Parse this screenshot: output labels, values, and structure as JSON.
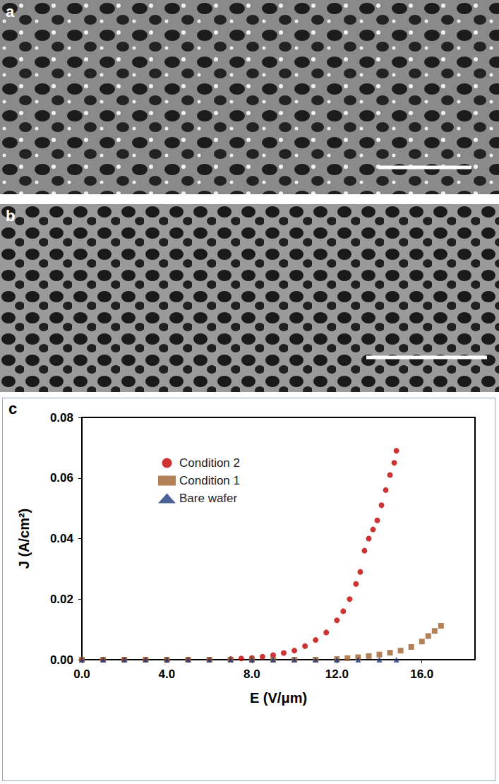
{
  "panel_labels": [
    "a",
    "b",
    "c"
  ],
  "chart_data": {
    "type": "scatter",
    "x_label": "E (V/μm)",
    "y_label": "J (A/cm²)",
    "xlim": [
      0,
      18.5
    ],
    "xticks": [
      {
        "value": 0,
        "label": "0.0"
      },
      {
        "value": 4,
        "label": "4.0"
      },
      {
        "value": 8,
        "label": "8.0"
      },
      {
        "value": 12,
        "label": "12.0"
      },
      {
        "value": 16,
        "label": "16.0"
      }
    ],
    "ylim": [
      0,
      0.08
    ],
    "yticks": [
      {
        "value": 0,
        "label": "0.00"
      },
      {
        "value": 0.02,
        "label": "0.02"
      },
      {
        "value": 0.04,
        "label": "0.04"
      },
      {
        "value": 0.06,
        "label": "0.06"
      },
      {
        "value": 0.08,
        "label": "0.08"
      }
    ],
    "grid": false,
    "legend": "upper left",
    "series": [
      {
        "name": "Condition 2",
        "color": "#c00000",
        "marker": "circle",
        "x": [
          0,
          1,
          2,
          3,
          4,
          5,
          6,
          7,
          7.5,
          8,
          8.5,
          9,
          9.5,
          10,
          10.5,
          11,
          11.5,
          12,
          12.3,
          12.6,
          12.9,
          13.1,
          13.3,
          13.5,
          13.7,
          13.9,
          14.1,
          14.3,
          14.5,
          14.7,
          14.8
        ],
        "values": [
          0,
          0,
          0,
          0,
          0,
          0,
          0,
          0.0002,
          0.0004,
          0.0006,
          0.001,
          0.0015,
          0.0022,
          0.003,
          0.0045,
          0.0065,
          0.009,
          0.013,
          0.016,
          0.02,
          0.025,
          0.029,
          0.036,
          0.04,
          0.043,
          0.046,
          0.051,
          0.056,
          0.061,
          0.065,
          0.069
        ]
      },
      {
        "name": "Condition 1",
        "color": "#a0622d",
        "marker": "square",
        "x": [
          0,
          1,
          2,
          3,
          4,
          5,
          6,
          7,
          8,
          9,
          10,
          11,
          12,
          12.5,
          13,
          13.5,
          14,
          14.5,
          15,
          15.5,
          16,
          16.3,
          16.6,
          16.9
        ],
        "values": [
          0,
          0,
          0,
          0,
          0,
          0,
          0,
          0,
          0,
          0,
          0,
          0,
          0.0002,
          0.0005,
          0.0008,
          0.0012,
          0.0017,
          0.0023,
          0.003,
          0.0042,
          0.006,
          0.0078,
          0.0095,
          0.0112
        ]
      },
      {
        "name": "Bare wafer",
        "color": "#1f3a7a",
        "marker": "triangle",
        "x": [
          0,
          1,
          2,
          3,
          4,
          5,
          6,
          7,
          8,
          9,
          10,
          11,
          12,
          13,
          14,
          14.8
        ],
        "values": [
          0,
          0,
          0,
          0,
          0,
          0,
          0,
          0,
          0,
          0,
          0,
          0,
          0,
          0,
          0,
          0
        ]
      }
    ]
  }
}
